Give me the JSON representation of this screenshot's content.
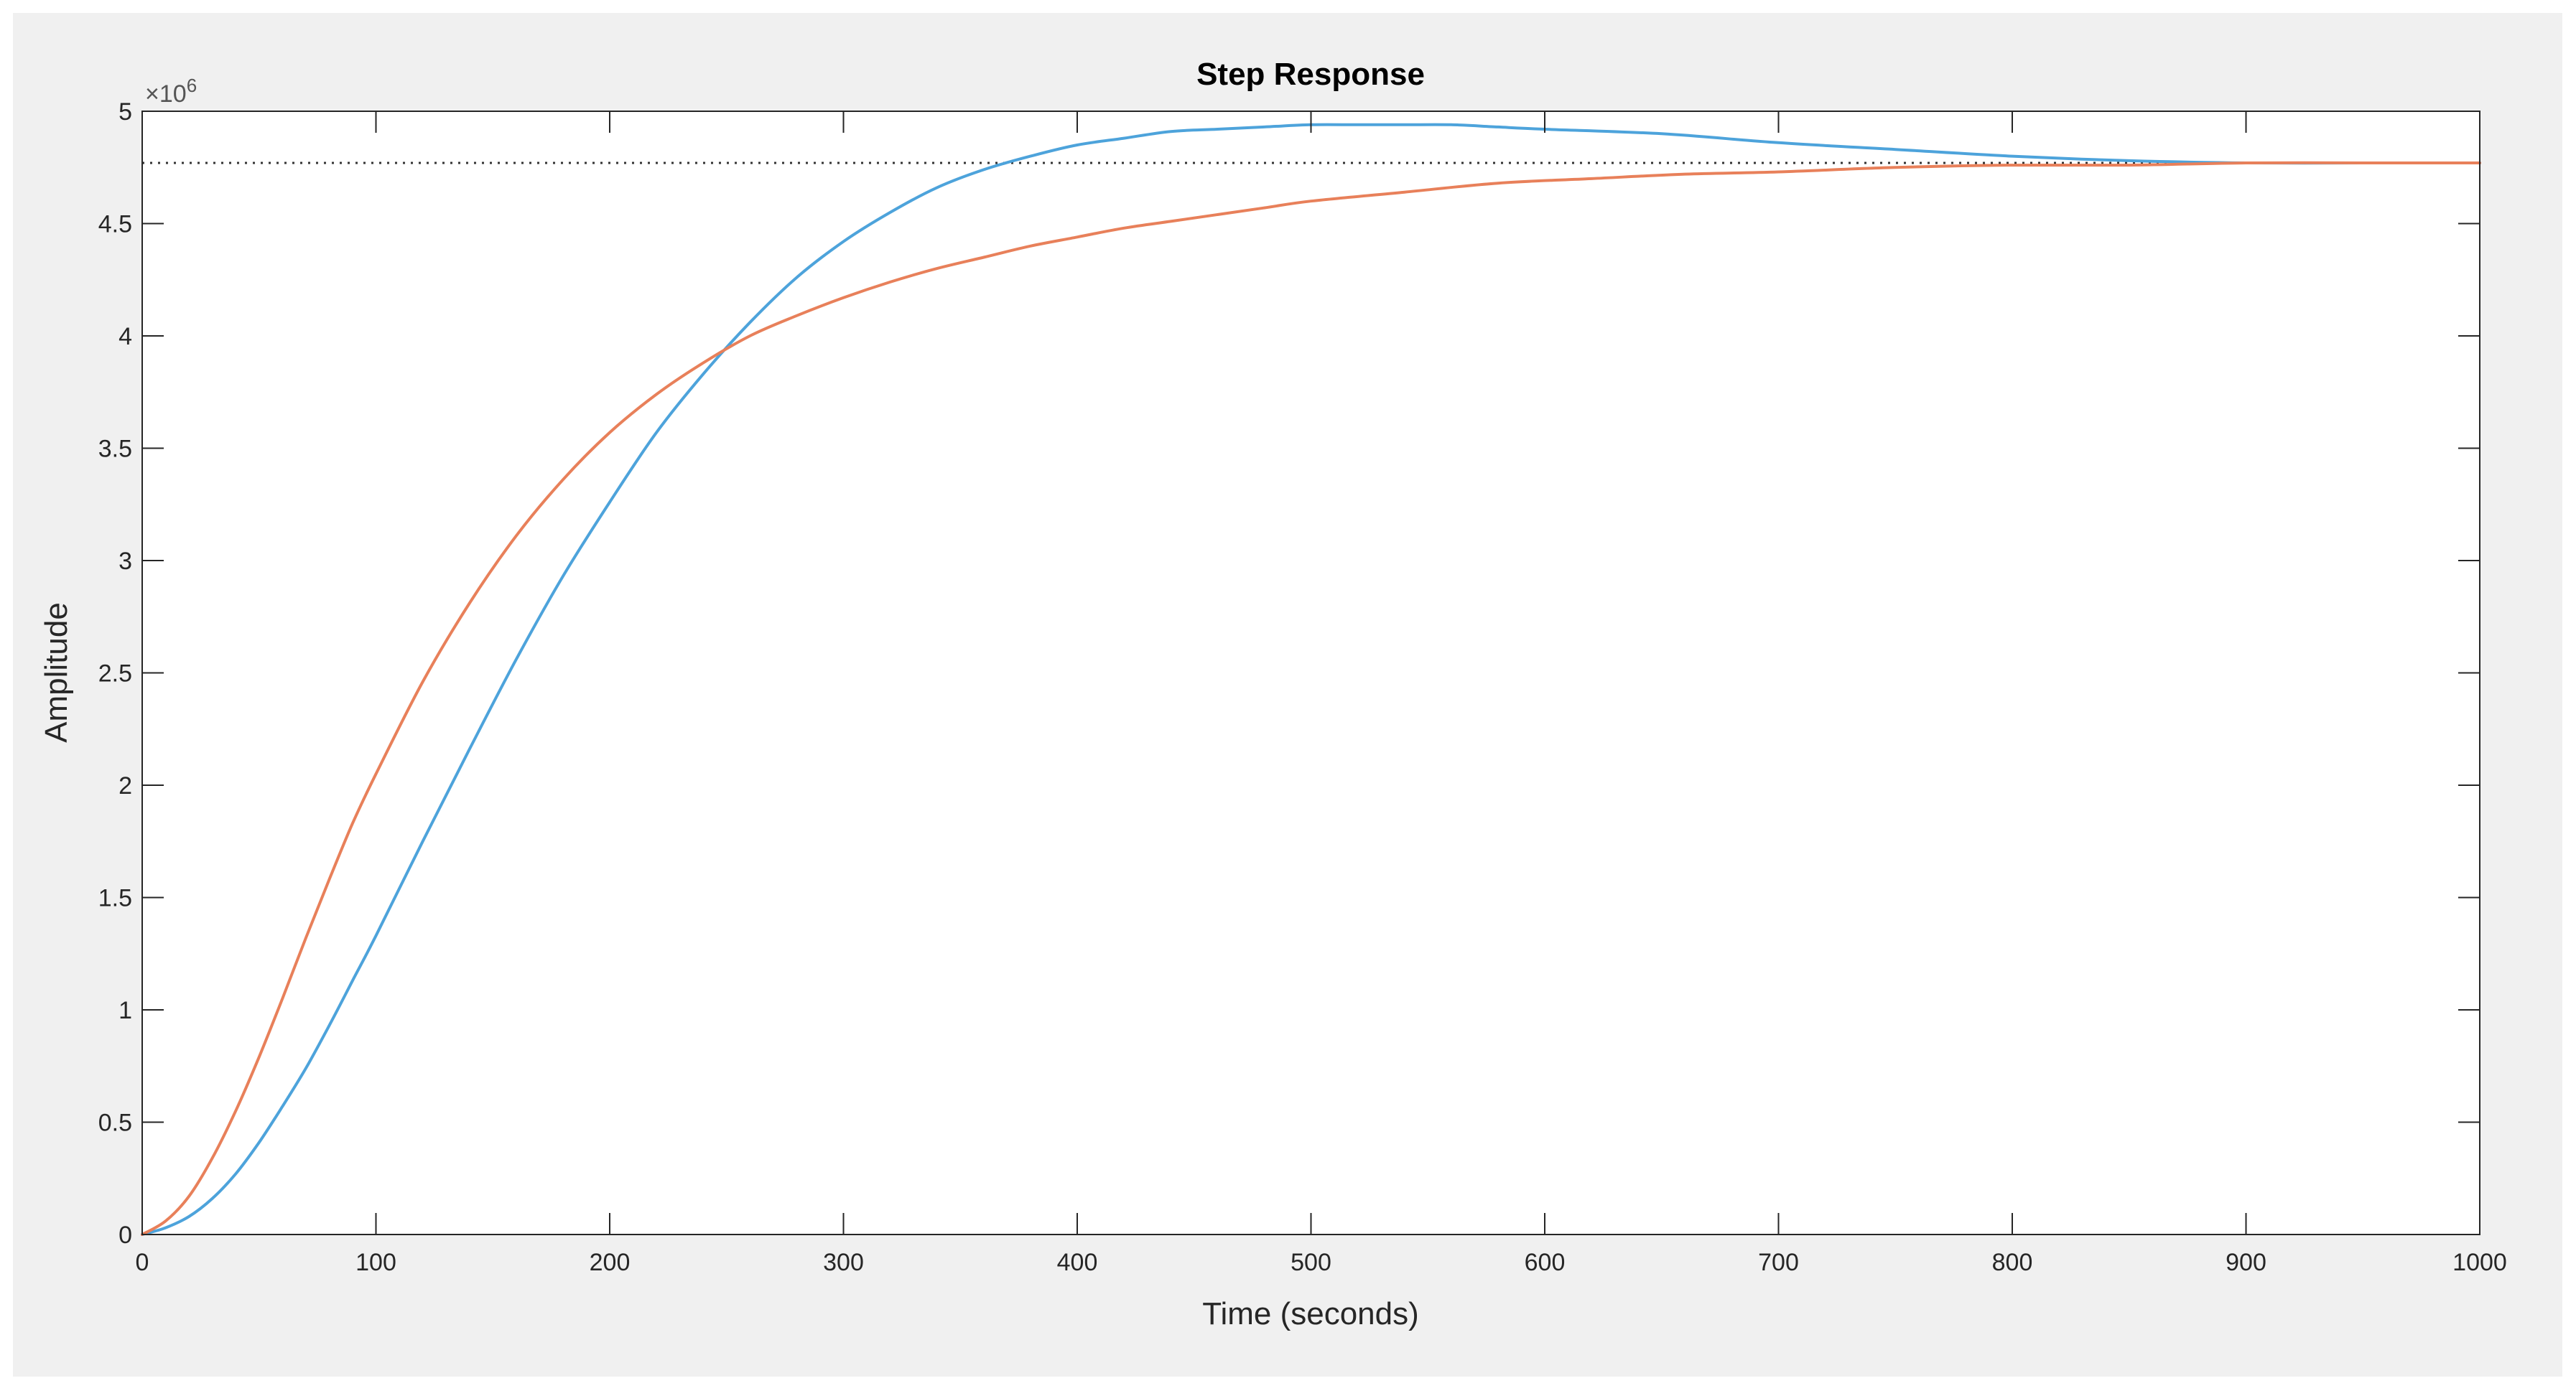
{
  "chart_data": {
    "type": "line",
    "title": "Step Response",
    "xlabel": "Time (seconds)",
    "ylabel": "Amplitude",
    "y_exponent_label": "×10",
    "y_exponent_power": "6",
    "xlim": [
      0,
      1000
    ],
    "ylim": [
      0,
      5
    ],
    "x_ticks": [
      0,
      100,
      200,
      300,
      400,
      500,
      600,
      700,
      800,
      900,
      1000
    ],
    "x_tick_labels": [
      "0",
      "100",
      "200",
      "300",
      "400",
      "500",
      "600",
      "700",
      "800",
      "900",
      "1000"
    ],
    "y_ticks": [
      0,
      0.5,
      1,
      1.5,
      2,
      2.5,
      3,
      3.5,
      4,
      4.5,
      5
    ],
    "y_tick_labels": [
      "0",
      "0.5",
      "1",
      "1.5",
      "2",
      "2.5",
      "3",
      "3.5",
      "4",
      "4.5",
      "5"
    ],
    "grid": false,
    "steady_state": {
      "y": 4.77,
      "color": "#333333",
      "style": "dotted"
    },
    "series": [
      {
        "color": "#4DA3DB",
        "x": [
          0,
          10,
          20,
          30,
          40,
          50,
          60,
          70,
          80,
          90,
          100,
          120,
          140,
          160,
          180,
          200,
          220,
          240,
          260,
          280,
          300,
          320,
          340,
          360,
          380,
          400,
          420,
          440,
          460,
          480,
          500,
          520,
          540,
          560,
          580,
          600,
          650,
          700,
          750,
          800,
          850,
          900,
          950,
          1000
        ],
        "y": [
          0,
          0.03,
          0.08,
          0.16,
          0.27,
          0.41,
          0.57,
          0.74,
          0.93,
          1.13,
          1.33,
          1.75,
          2.16,
          2.56,
          2.93,
          3.26,
          3.57,
          3.83,
          4.06,
          4.26,
          4.42,
          4.55,
          4.66,
          4.74,
          4.8,
          4.85,
          4.88,
          4.91,
          4.92,
          4.93,
          4.94,
          4.94,
          4.94,
          4.94,
          4.93,
          4.92,
          4.9,
          4.86,
          4.83,
          4.8,
          4.78,
          4.77,
          4.77,
          4.77
        ]
      },
      {
        "color": "#E8805A",
        "x": [
          0,
          10,
          20,
          30,
          40,
          50,
          60,
          70,
          80,
          90,
          100,
          120,
          140,
          160,
          180,
          200,
          220,
          240,
          260,
          280,
          300,
          320,
          340,
          360,
          380,
          400,
          420,
          440,
          460,
          480,
          500,
          540,
          580,
          620,
          660,
          700,
          750,
          800,
          850,
          900,
          950,
          1000
        ],
        "y": [
          0,
          0.06,
          0.17,
          0.34,
          0.55,
          0.79,
          1.05,
          1.32,
          1.58,
          1.83,
          2.05,
          2.46,
          2.81,
          3.11,
          3.36,
          3.57,
          3.74,
          3.88,
          4.0,
          4.09,
          4.17,
          4.24,
          4.3,
          4.35,
          4.4,
          4.44,
          4.48,
          4.51,
          4.54,
          4.57,
          4.6,
          4.64,
          4.68,
          4.7,
          4.72,
          4.73,
          4.75,
          4.76,
          4.76,
          4.77,
          4.77,
          4.77
        ]
      }
    ]
  }
}
